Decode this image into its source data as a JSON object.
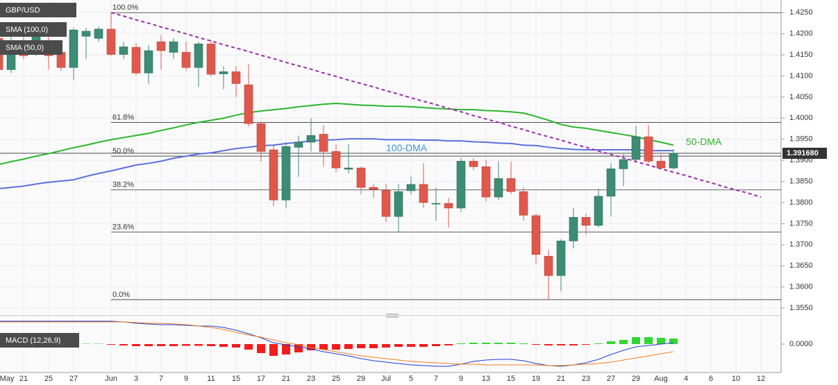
{
  "chart_data": [
    {
      "type": "candlestick",
      "title": "GBP/USD",
      "categories": [
        "May",
        null,
        "21",
        null,
        "25",
        null,
        "27",
        null,
        null,
        "Jun",
        null,
        "3",
        null,
        "7",
        null,
        "9",
        null,
        "11",
        null,
        "15",
        null,
        "17",
        null,
        "21",
        null,
        "23",
        null,
        "25",
        null,
        "29",
        null,
        "Jul",
        null,
        "5",
        null,
        "7",
        null,
        "9",
        null,
        "13",
        null,
        "15",
        null,
        "19",
        null,
        "21",
        null,
        "23",
        null,
        "27",
        null,
        "29",
        null,
        "Aug",
        null,
        "4",
        null,
        "6",
        null,
        "10",
        null,
        "12"
      ],
      "open": [
        1.4189,
        1.4115,
        1.4184,
        1.4156,
        1.4168,
        1.4156,
        1.412,
        1.4194,
        1.4189,
        1.4211,
        1.4151,
        1.4168,
        1.4107,
        1.4181,
        1.4156,
        1.4156,
        1.412,
        1.4176,
        1.4105,
        1.411,
        1.4079,
        1.3987,
        1.3925,
        1.3806,
        1.3931,
        1.3943,
        1.3962,
        1.3921,
        1.3879,
        1.3882,
        1.3836,
        1.3829,
        1.3767,
        1.3828,
        1.3843,
        1.3797,
        1.3798,
        1.3787,
        1.3898,
        1.3885,
        1.3813,
        1.3857,
        1.3826,
        1.3769,
        1.3673,
        1.3627,
        1.3709,
        1.3765,
        1.3746,
        1.3815,
        1.388,
        1.3902,
        1.3956,
        1.3898,
        1.3882,
        null,
        null,
        null,
        null,
        null,
        null,
        null
      ],
      "high": [
        1.4197,
        1.4197,
        1.4206,
        1.4211,
        1.4197,
        1.4168,
        1.4214,
        1.4214,
        1.4217,
        1.425,
        1.4181,
        1.4178,
        1.4173,
        1.4197,
        1.4189,
        1.4181,
        1.4181,
        1.4184,
        1.4123,
        1.4123,
        1.4128,
        1.3992,
        1.3935,
        1.3943,
        1.3959,
        1.4,
        1.3984,
        1.3938,
        1.3938,
        1.3885,
        1.3844,
        1.3844,
        1.3844,
        1.3861,
        1.3893,
        1.3836,
        1.3811,
        1.3905,
        1.3905,
        1.3902,
        1.3898,
        1.3897,
        1.3836,
        1.3774,
        1.3688,
        1.3713,
        1.3787,
        1.3774,
        1.3833,
        1.3893,
        1.3915,
        1.3981,
        1.3984,
        1.3915,
        1.3926,
        null,
        null,
        null,
        null,
        null,
        null,
        null
      ],
      "low": [
        1.4102,
        1.4107,
        1.414,
        1.4148,
        1.4115,
        1.4112,
        1.409,
        1.414,
        1.4181,
        1.4148,
        1.414,
        1.4102,
        1.4082,
        1.4115,
        1.414,
        1.4112,
        1.4074,
        1.4099,
        1.4069,
        1.405,
        1.398,
        1.3897,
        1.3792,
        1.3787,
        1.3861,
        1.3921,
        1.3885,
        1.3872,
        1.3869,
        1.382,
        1.3811,
        1.3754,
        1.3729,
        1.382,
        1.3787,
        1.3757,
        1.3741,
        1.3778,
        1.3877,
        1.3803,
        1.3806,
        1.382,
        1.3757,
        1.3655,
        1.357,
        1.359,
        1.3691,
        1.3724,
        1.3741,
        1.3767,
        1.3839,
        1.3898,
        1.3893,
        1.3877,
        1.3879,
        null,
        null,
        null,
        null,
        null,
        null,
        null
      ],
      "close": [
        1.4115,
        1.4184,
        1.4148,
        1.4194,
        1.4148,
        1.412,
        1.4209,
        1.4206,
        1.4211,
        1.4151,
        1.4169,
        1.4107,
        1.416,
        1.416,
        1.4181,
        1.412,
        1.4176,
        1.4104,
        1.411,
        1.4082,
        1.3987,
        1.3921,
        1.3806,
        1.3933,
        1.3943,
        1.3959,
        1.3921,
        1.3882,
        1.3882,
        1.3836,
        1.3831,
        1.3767,
        1.3826,
        1.3843,
        1.38,
        1.3798,
        1.3787,
        1.3898,
        1.3885,
        1.3813,
        1.3857,
        1.3826,
        1.377,
        1.3677,
        1.3627,
        1.3709,
        1.3765,
        1.3746,
        1.3815,
        1.388,
        1.3902,
        1.3956,
        1.3898,
        1.3882,
        1.3917,
        null,
        null,
        null,
        null,
        null,
        null,
        null
      ],
      "up_color": "#3d8c74",
      "down_color": "#e0584c",
      "series": [
        {
          "name": "SMA (100,0)",
          "label": "100-DMA",
          "color": "#5a6fe0",
          "label_color": "#3a94dc",
          "values": [
            1.3833,
            1.3836,
            1.3839,
            1.3844,
            1.3848,
            1.3851,
            1.3854,
            1.3862,
            1.3869,
            1.3875,
            1.3882,
            1.3889,
            1.3893,
            1.3898,
            1.3905,
            1.391,
            1.3915,
            1.3918,
            1.3923,
            1.3928,
            1.3931,
            1.3935,
            1.3936,
            1.394,
            1.3943,
            1.3946,
            1.3948,
            1.3949,
            1.3951,
            1.3951,
            1.3951,
            1.3949,
            1.3949,
            1.3949,
            1.3948,
            1.3948,
            1.3946,
            1.3946,
            1.3944,
            1.3943,
            1.3941,
            1.394,
            1.3936,
            1.3935,
            1.3931,
            1.3928,
            1.3926,
            1.3925,
            1.3925,
            1.3925,
            1.3925,
            1.3925,
            1.3923,
            1.3923,
            1.3923,
            null,
            null,
            null,
            null,
            null,
            null,
            null
          ]
        },
        {
          "name": "SMA (50,0)",
          "label": "50-DMA",
          "color": "#2bb52b",
          "label_color": "#2bb52b",
          "values": [
            1.389,
            1.3897,
            1.3903,
            1.391,
            1.3916,
            1.3923,
            1.393,
            1.3936,
            1.3943,
            1.3949,
            1.3954,
            1.3959,
            1.3964,
            1.3971,
            1.3977,
            1.3984,
            1.399,
            1.3995,
            1.4,
            1.4007,
            1.4013,
            1.4017,
            1.402,
            1.4023,
            1.4027,
            1.403,
            1.4033,
            1.4035,
            1.4033,
            1.4031,
            1.403,
            1.4028,
            1.4028,
            1.4027,
            1.4025,
            1.4023,
            1.4022,
            1.402,
            1.402,
            1.4018,
            1.4017,
            1.4015,
            1.4012,
            1.4004,
            1.3995,
            1.3985,
            1.3979,
            1.3976,
            1.3971,
            1.3966,
            1.3961,
            1.3956,
            1.3949,
            1.3943,
            1.3936,
            null,
            null,
            null,
            null,
            null,
            null,
            null
          ]
        }
      ],
      "trendline": {
        "color": "#9a2aa8",
        "values": [
          null,
          null,
          null,
          null,
          null,
          null,
          null,
          null,
          null,
          1.425,
          1.4242,
          1.4233,
          1.4225,
          1.4216,
          1.4208,
          1.42,
          1.4191,
          1.4183,
          1.4174,
          1.4166,
          1.4158,
          1.4149,
          1.4141,
          1.4132,
          1.4124,
          1.4116,
          1.4107,
          1.4099,
          1.409,
          1.4082,
          1.4074,
          1.4065,
          1.4057,
          1.4048,
          1.404,
          1.4032,
          1.4023,
          1.4015,
          1.4006,
          1.3998,
          1.399,
          1.3981,
          1.3973,
          1.3964,
          1.3956,
          1.3948,
          1.3939,
          1.3931,
          1.3922,
          1.3914,
          1.3906,
          1.3897,
          1.3889,
          1.388,
          1.3872,
          1.3864,
          1.3855,
          1.3847,
          1.3838,
          1.383,
          1.3822,
          1.3813
        ]
      },
      "fibonacci": [
        {
          "label": "100.0%",
          "value": 1.425
        },
        {
          "label": "61.8%",
          "value": 1.399
        },
        {
          "label": "50.0%",
          "value": 1.391
        },
        {
          "label": "38.2%",
          "value": 1.383
        },
        {
          "label": "23.6%",
          "value": 1.373
        },
        {
          "label": "0.0%",
          "value": 1.357
        }
      ],
      "last_price": {
        "value": 1.39168,
        "label": "1.391680"
      },
      "ylim": [
        1.3537,
        1.428
      ],
      "yticks": [
        {
          "value": 1.425,
          "label": "1.4250"
        },
        {
          "value": 1.42,
          "label": "1.4200"
        },
        {
          "value": 1.415,
          "label": "1.4150"
        },
        {
          "value": 1.41,
          "label": "1.4100"
        },
        {
          "value": 1.405,
          "label": "1.4050"
        },
        {
          "value": 1.4,
          "label": "1.4000"
        },
        {
          "value": 1.395,
          "label": "1.3950"
        },
        {
          "value": 1.39,
          "label": "1.3900"
        },
        {
          "value": 1.385,
          "label": "1.3850"
        },
        {
          "value": 1.38,
          "label": "1.3800"
        },
        {
          "value": 1.375,
          "label": "1.3750"
        },
        {
          "value": 1.37,
          "label": "1.3700"
        },
        {
          "value": 1.365,
          "label": "1.3650"
        },
        {
          "value": 1.36,
          "label": "1.3600"
        },
        {
          "value": 1.355,
          "label": "1.3550"
        }
      ],
      "grid": true
    },
    {
      "type": "macd",
      "title": "MACD (12,26,9)",
      "histogram": {
        "up_color": "#33d633",
        "down_color": "#f21c1c",
        "values": [
          0.0001,
          0.0001,
          0.0001,
          0.0001,
          0.0001,
          0.0001,
          0.0001,
          0.0001,
          0.0001,
          -0.0002,
          -0.0004,
          -0.0006,
          -0.0006,
          -0.0006,
          -0.0006,
          -0.0005,
          -0.0005,
          -0.0006,
          -0.0008,
          -0.001,
          -0.0016,
          -0.0026,
          -0.0034,
          -0.003,
          -0.0024,
          -0.0018,
          -0.0016,
          -0.0016,
          -0.0014,
          -0.0012,
          -0.0012,
          -0.001,
          -0.0008,
          -0.0008,
          -0.0008,
          -0.0006,
          -0.0004,
          0.0002,
          0.0004,
          0.0004,
          0.0004,
          0.0004,
          0.0002,
          -0.0002,
          -0.0004,
          -0.0004,
          -0.0004,
          -0.0002,
          0.0002,
          0.0008,
          0.0012,
          0.002,
          0.002,
          0.0018,
          0.0016,
          null,
          null,
          null,
          null,
          null,
          null,
          null
        ]
      },
      "series": [
        {
          "color": "#1f3fd6",
          "values": [
            0.0066,
            0.0066,
            0.0066,
            0.0066,
            0.0066,
            0.0066,
            0.0066,
            0.0066,
            0.0066,
            0.0066,
            0.0064,
            0.006,
            0.0058,
            0.0056,
            0.0056,
            0.0054,
            0.0052,
            0.0052,
            0.0048,
            0.004,
            0.003,
            0.0018,
            0.0004,
            -0.0002,
            -0.0008,
            -0.0014,
            -0.0022,
            -0.0028,
            -0.0034,
            -0.0042,
            -0.0048,
            -0.0052,
            -0.0056,
            -0.006,
            -0.0062,
            -0.0064,
            -0.0064,
            -0.0058,
            -0.005,
            -0.0046,
            -0.0044,
            -0.0044,
            -0.0048,
            -0.0056,
            -0.0062,
            -0.0064,
            -0.006,
            -0.0054,
            -0.0044,
            -0.003,
            -0.0018,
            -0.0008,
            -0.0004,
            0,
            0.0004,
            null,
            null,
            null,
            null,
            null,
            null,
            null
          ]
        },
        {
          "color": "#f07d1c",
          "values": [
            0.0064,
            0.0064,
            0.0064,
            0.0064,
            0.0064,
            0.0064,
            0.0064,
            0.0064,
            0.0064,
            0.0064,
            0.0064,
            0.0062,
            0.006,
            0.006,
            0.0058,
            0.0056,
            0.0052,
            0.0048,
            0.0042,
            0.0034,
            0.0026,
            0.002,
            0.0012,
            0.0004,
            -0.0002,
            -0.001,
            -0.0016,
            -0.0022,
            -0.0028,
            -0.0034,
            -0.0038,
            -0.0042,
            -0.0046,
            -0.005,
            -0.0052,
            -0.0054,
            -0.0056,
            -0.0058,
            -0.0058,
            -0.006,
            -0.006,
            -0.006,
            -0.006,
            -0.006,
            -0.0062,
            -0.0062,
            -0.006,
            -0.0058,
            -0.0056,
            -0.0052,
            -0.0046,
            -0.004,
            -0.0034,
            -0.0028,
            -0.0022,
            null,
            null,
            null,
            null,
            null,
            null,
            null
          ]
        }
      ],
      "ylim": [
        -0.0078,
        0.0072
      ],
      "yticks": [
        {
          "value": 0,
          "label": "0.0000"
        }
      ]
    }
  ]
}
